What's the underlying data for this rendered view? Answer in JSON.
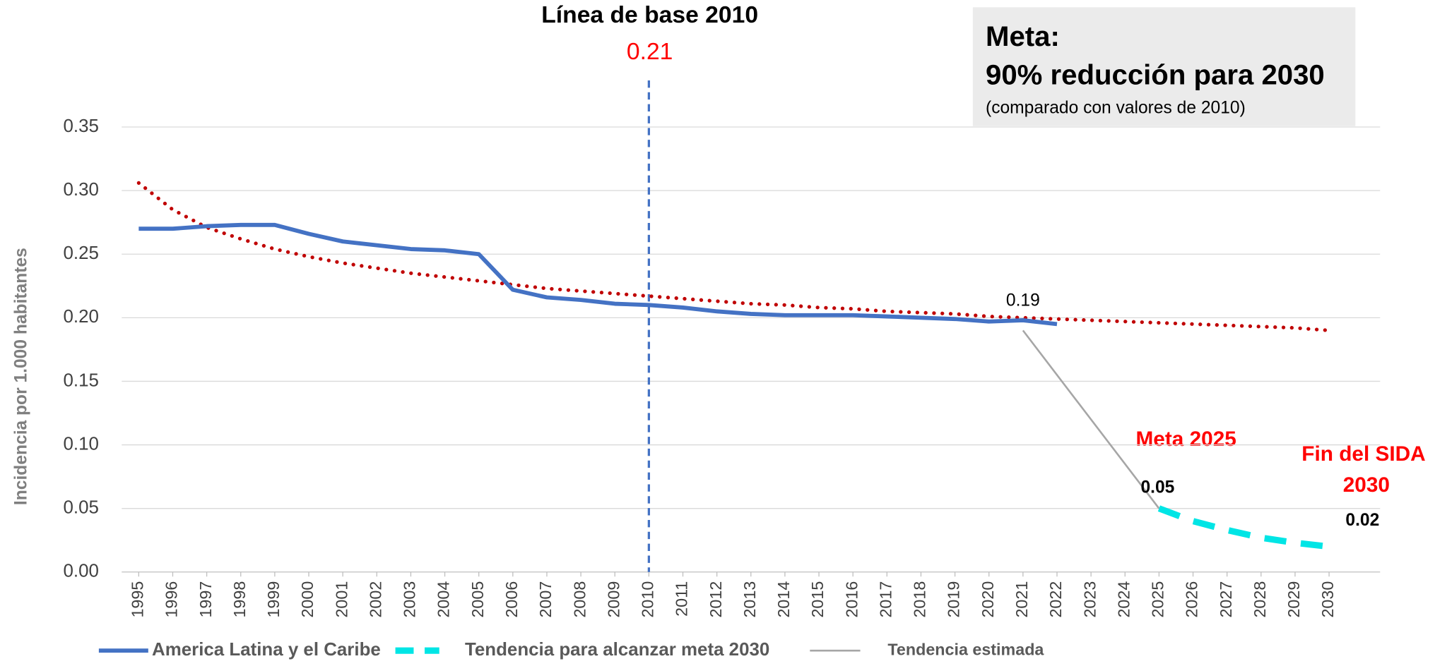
{
  "chart_data": {
    "type": "line",
    "y_axis_label": "Incidencia por 1.000 habitantes",
    "xlim": [
      1994.5,
      2031.5
    ],
    "xticks": [
      1995,
      1996,
      1997,
      1998,
      1999,
      2000,
      2001,
      2002,
      2003,
      2004,
      2005,
      2006,
      2007,
      2008,
      2009,
      2010,
      2011,
      2012,
      2013,
      2014,
      2015,
      2016,
      2017,
      2018,
      2019,
      2020,
      2021,
      2022,
      2023,
      2024,
      2025,
      2026,
      2027,
      2028,
      2029,
      2030
    ],
    "ylim": [
      0,
      0.35
    ],
    "yticks": [
      {
        "value": 0,
        "label": "0.00"
      },
      0.05,
      {
        "value": 0.1,
        "label": "0.10"
      },
      0.15,
      {
        "value": 0.2,
        "label": "0.20"
      },
      0.25,
      {
        "value": 0.3,
        "label": "0.30"
      },
      0.35
    ],
    "grid": true,
    "series": [
      {
        "name": "America Latina y el Caribe",
        "color": "#4472c4",
        "style": "solid",
        "x": [
          1995,
          1996,
          1997,
          1998,
          1999,
          2000,
          2001,
          2002,
          2003,
          2004,
          2005,
          2006,
          2007,
          2008,
          2009,
          2010,
          2011,
          2012,
          2013,
          2014,
          2015,
          2016,
          2017,
          2018,
          2019,
          2020,
          2021,
          2022
        ],
        "values": [
          0.27,
          0.27,
          0.272,
          0.273,
          0.273,
          0.266,
          0.26,
          0.257,
          0.254,
          0.253,
          0.25,
          0.222,
          0.216,
          0.214,
          0.211,
          0.21,
          0.208,
          0.205,
          0.203,
          0.202,
          0.202,
          0.202,
          0.201,
          0.2,
          0.199,
          0.197,
          0.198,
          0.195
        ]
      },
      {
        "name": "Tendencia para alcanzar meta 2030",
        "color": "#00e5e5",
        "style": "dashed",
        "x": [
          2025,
          2026,
          2027,
          2028,
          2029,
          2030
        ],
        "values": [
          0.05,
          0.04,
          0.033,
          0.027,
          0.023,
          0.02
        ]
      },
      {
        "name": "Tendencia estimada",
        "color": "#a6a6a6",
        "style": "thin",
        "x": [
          2021,
          2025
        ],
        "values": [
          0.19,
          0.05
        ]
      },
      {
        "color": "#c00000",
        "style": "dotted",
        "x": [
          1995,
          1996,
          1997,
          1998,
          1999,
          2000,
          2001,
          2002,
          2003,
          2004,
          2005,
          2006,
          2007,
          2008,
          2009,
          2010,
          2011,
          2012,
          2013,
          2014,
          2015,
          2016,
          2017,
          2018,
          2019,
          2020,
          2021,
          2022,
          2023,
          2024,
          2025,
          2026,
          2027,
          2028,
          2029,
          2030
        ],
        "values": [
          0.306,
          0.285,
          0.271,
          0.262,
          0.254,
          0.248,
          0.243,
          0.239,
          0.235,
          0.232,
          0.229,
          0.226,
          0.223,
          0.221,
          0.219,
          0.217,
          0.215,
          0.213,
          0.211,
          0.21,
          0.208,
          0.207,
          0.205,
          0.204,
          0.203,
          0.201,
          0.2,
          0.199,
          0.198,
          0.197,
          0.196,
          0.195,
          0.194,
          0.193,
          0.192,
          0.19
        ]
      }
    ],
    "point_labels": [
      {
        "x": 2021,
        "y": 0.19
      },
      {
        "x": 2025,
        "y": 0.05
      },
      {
        "x": 2030,
        "y": 0.02
      }
    ],
    "baseline": {
      "x": 2010,
      "title": "Línea de base 2010",
      "value": 0.21
    },
    "annotations": [
      "Meta 2025",
      "Fin del SIDA",
      "2030"
    ],
    "goal_box": {
      "title": "Meta:",
      "subtitle": "90% reducción para 2030",
      "note": "(comparado con  valores de 2010)"
    }
  }
}
